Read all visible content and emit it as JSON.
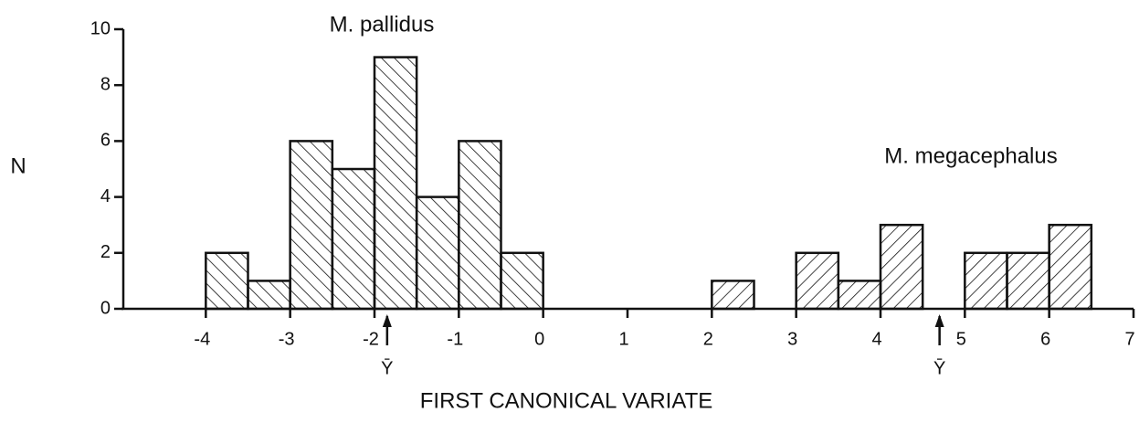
{
  "chart_data": {
    "type": "histogram",
    "xlabel": "FIRST CANONICAL VARIATE",
    "ylabel": "N",
    "xlim": [
      -5,
      7
    ],
    "xticks": [
      -4,
      -3,
      -2,
      -1,
      0,
      1,
      2,
      3,
      4,
      5,
      6,
      7
    ],
    "ylim": [
      0,
      10
    ],
    "yticks": [
      0,
      2,
      4,
      6,
      8,
      10
    ],
    "series": [
      {
        "name": "M. pallidus",
        "color": "#111111",
        "hatch": "\\",
        "bins": [
          -4,
          -3.5,
          -3,
          -2.5,
          -2,
          -1.5,
          -1,
          -0.5,
          0
        ],
        "counts": [
          2,
          1,
          6,
          5,
          9,
          4,
          6,
          2
        ],
        "mean": -1.85,
        "mean_label": "Ȳ"
      },
      {
        "name": "M. megacephalus",
        "color": "#111111",
        "hatch": "/",
        "bins": [
          2,
          2.5,
          3,
          3.5,
          4,
          4.5,
          5,
          5.5,
          6,
          6.5
        ],
        "counts": [
          1,
          0,
          2,
          1,
          3,
          0,
          2,
          2,
          3
        ],
        "mean": 4.7,
        "mean_label": "Ȳ"
      }
    ]
  }
}
